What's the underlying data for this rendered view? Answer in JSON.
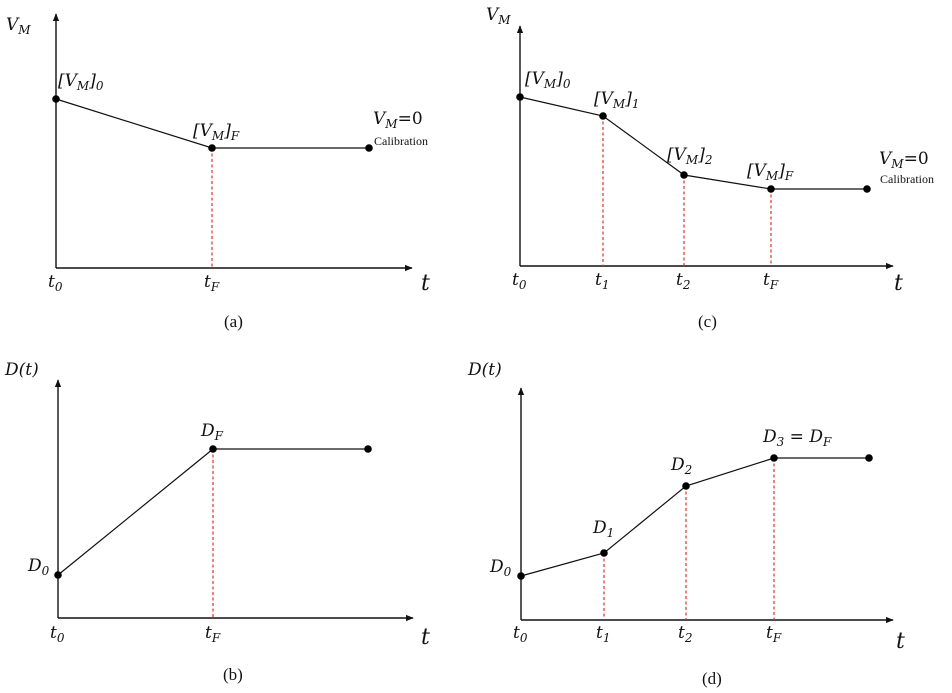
{
  "panels": {
    "a": {
      "caption": "(a)",
      "y_axis": "V_M",
      "x_axis": "t",
      "ticks": [
        "t_0",
        "t_F"
      ],
      "points": [
        {
          "label": "[V_M]_0"
        },
        {
          "label": "[V_M]_F"
        },
        {
          "label": "V_M=0",
          "note": "Calibration"
        }
      ]
    },
    "b": {
      "caption": "(b)",
      "y_axis": "D(t)",
      "x_axis": "t",
      "ticks": [
        "t_0",
        "t_F"
      ],
      "points": [
        {
          "label": "D_0"
        },
        {
          "label": "D_F"
        },
        {
          "label": ""
        }
      ]
    },
    "c": {
      "caption": "(c)",
      "y_axis": "V_M",
      "x_axis": "t",
      "ticks": [
        "t_0",
        "t_1",
        "t_2",
        "t_F"
      ],
      "points": [
        {
          "label": "[V_M]_0"
        },
        {
          "label": "[V_M]_1"
        },
        {
          "label": "[V_M]_2"
        },
        {
          "label": "[V_M]_F"
        },
        {
          "label": "V_M=0",
          "note": "Calibration"
        }
      ]
    },
    "d": {
      "caption": "(d)",
      "y_axis": "D(t)",
      "x_axis": "t",
      "ticks": [
        "t_0",
        "t_1",
        "t_2",
        "t_F"
      ],
      "points": [
        {
          "label": "D_0"
        },
        {
          "label": "D_1"
        },
        {
          "label": "D_2"
        },
        {
          "label": "D_3 = D_F"
        },
        {
          "label": ""
        }
      ]
    }
  }
}
